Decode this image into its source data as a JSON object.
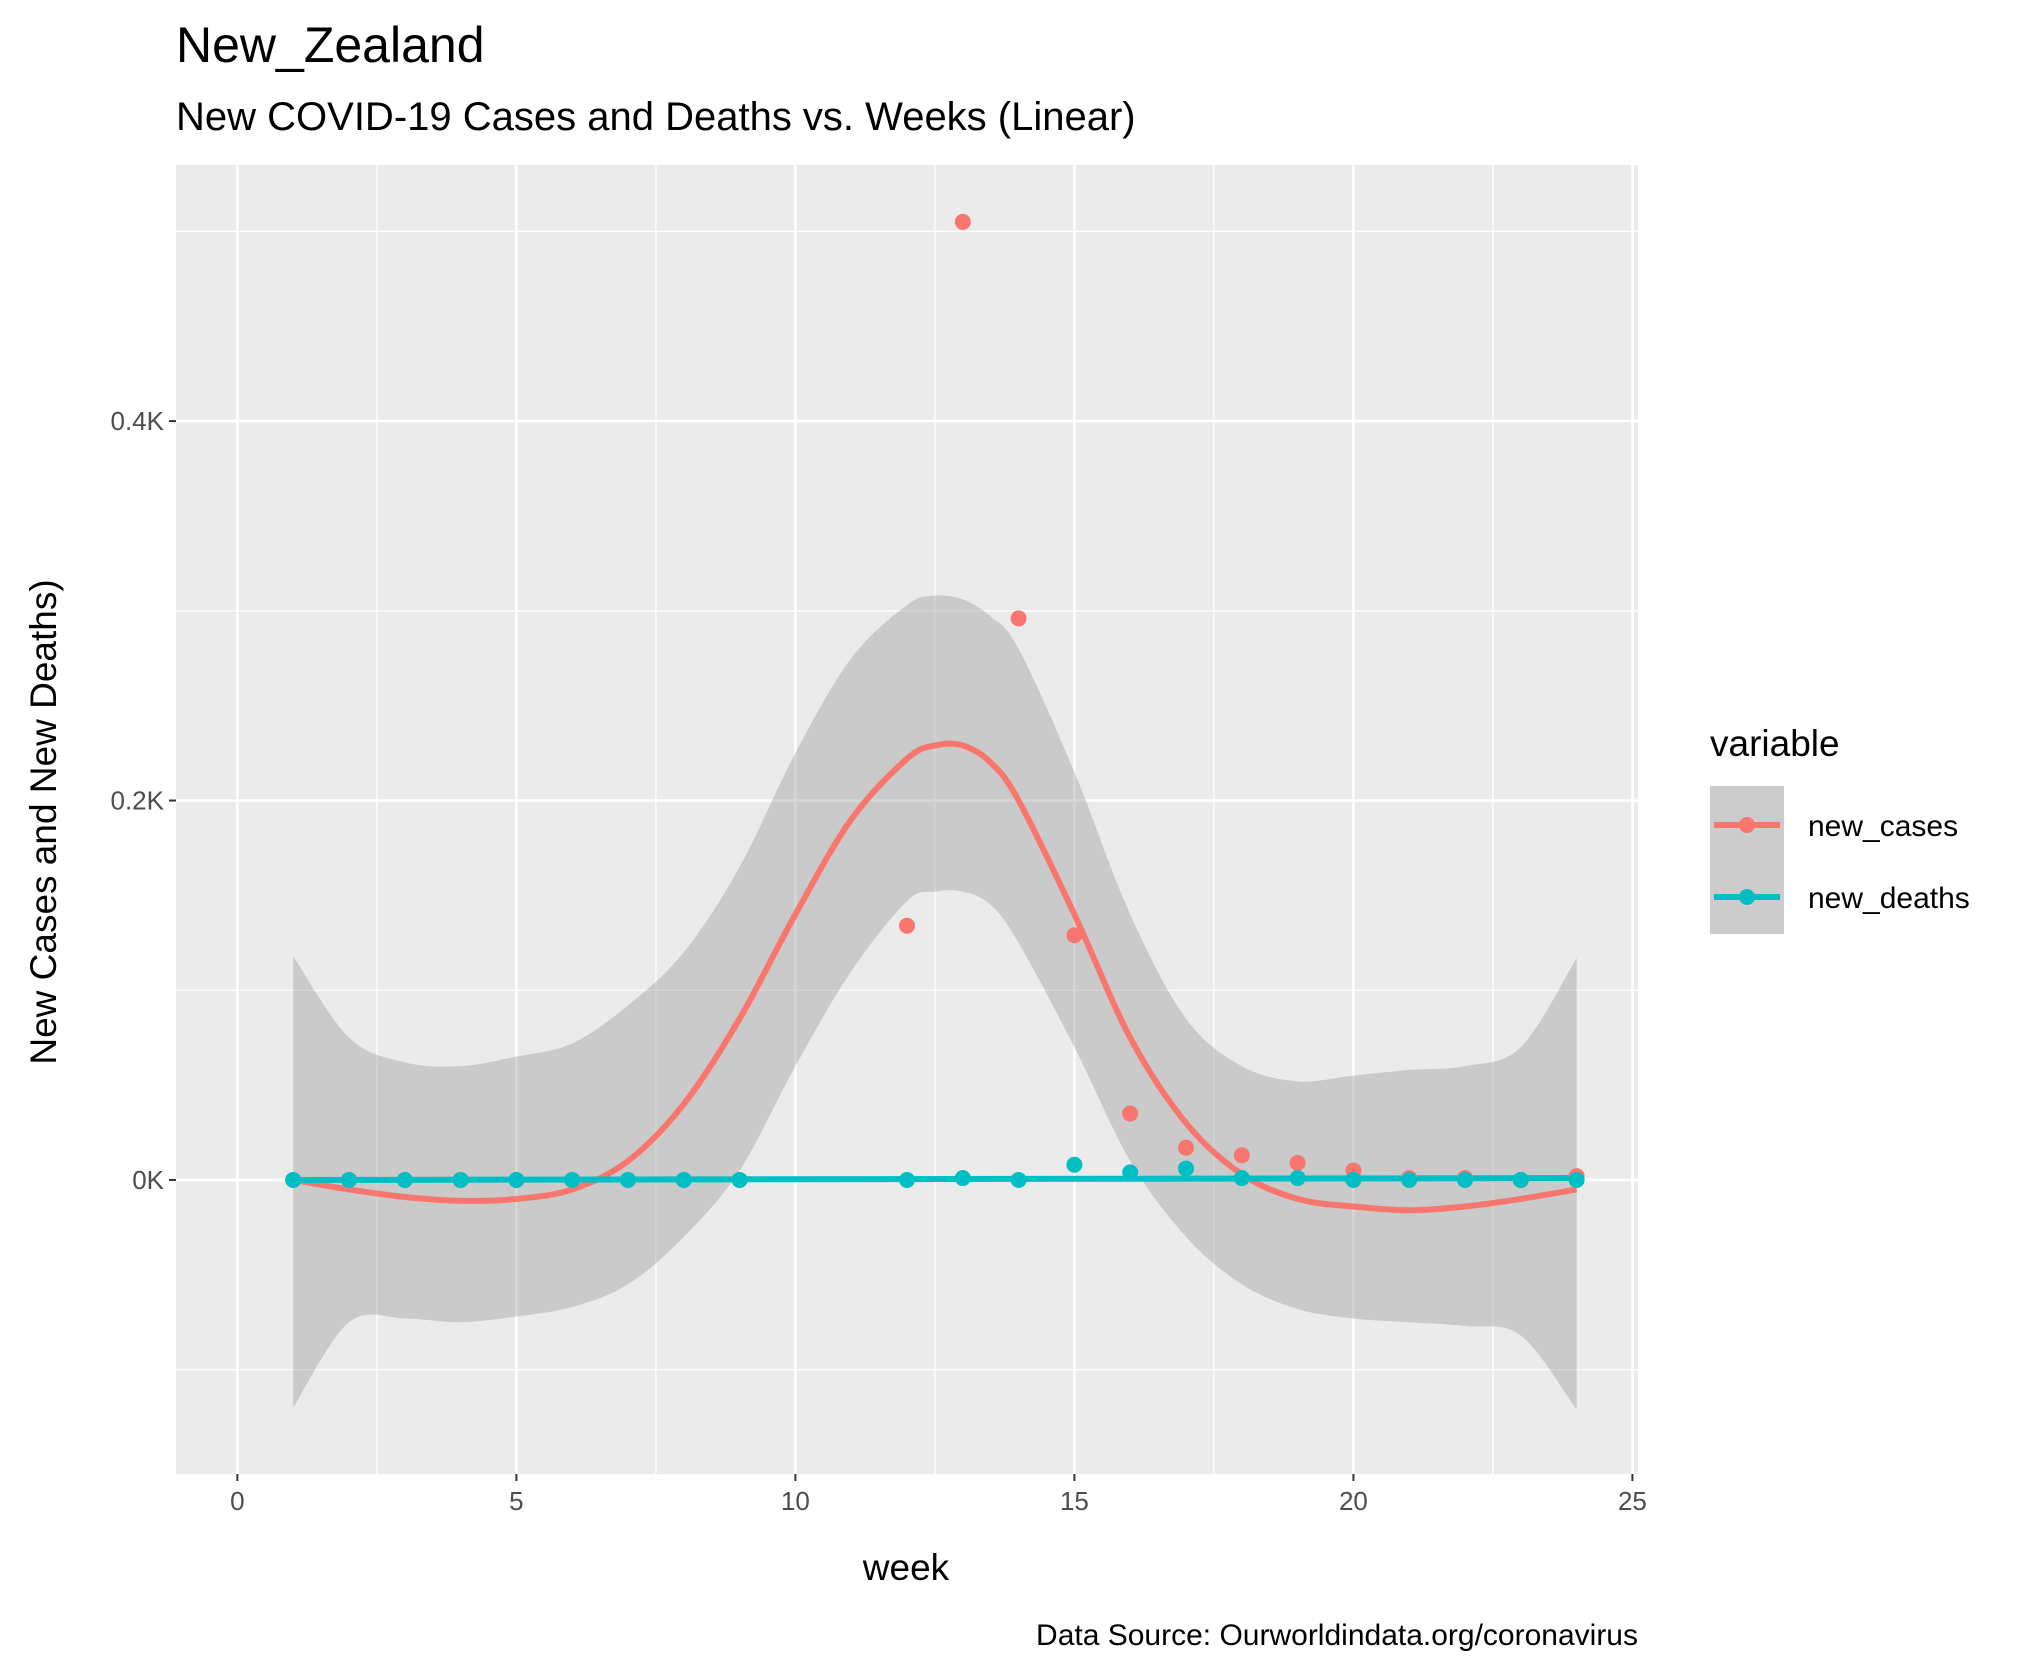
{
  "chart_data": {
    "type": "scatter",
    "title": "New_Zealand",
    "subtitle": "New COVID-19 Cases and Deaths vs. Weeks (Linear)",
    "xlabel": "week",
    "ylabel": "New Cases and New Deaths)",
    "caption": "Data Source: Ourworldindata.org/coronavirus",
    "xlim": [
      -1.1,
      25.1
    ],
    "ylim": [
      -155,
      535
    ],
    "x_ticks": [
      0,
      5,
      10,
      15,
      20,
      25
    ],
    "x_tick_labels": [
      "0",
      "5",
      "10",
      "15",
      "20",
      "25"
    ],
    "y_ticks": [
      0,
      200,
      400
    ],
    "y_tick_labels": [
      "0K",
      "0.2K",
      "0.4K"
    ],
    "grid": true,
    "legend": {
      "title": "variable",
      "placement": "right",
      "entries": [
        "new_cases",
        "new_deaths"
      ]
    },
    "series": [
      {
        "name": "new_cases",
        "color": "#F8766D",
        "points": {
          "x": [
            1,
            2,
            3,
            4,
            5,
            6,
            7,
            8,
            9,
            12,
            13,
            14,
            15,
            16,
            17,
            18,
            19,
            20,
            21,
            22,
            23,
            24
          ],
          "y": [
            0,
            0,
            0,
            0,
            0,
            0,
            0,
            0,
            0,
            134,
            505,
            296,
            129,
            35,
            17,
            13,
            9,
            5,
            1,
            1,
            0,
            2
          ]
        },
        "smooth": {
          "x": [
            1,
            2,
            3,
            4,
            5,
            6,
            7,
            8,
            9,
            10,
            11,
            12,
            12.5,
            13,
            13.5,
            14,
            15,
            16,
            17,
            18,
            19,
            20,
            21,
            22,
            23,
            24
          ],
          "y": [
            0,
            -5,
            -9,
            -11,
            -10,
            -5,
            10,
            40,
            85,
            140,
            190,
            222,
            229,
            229,
            220,
            200,
            140,
            75,
            30,
            3,
            -10,
            -14,
            -16,
            -14,
            -10,
            -5
          ],
          "lower": [
            -120,
            -75,
            -73,
            -75,
            -72,
            -67,
            -55,
            -30,
            5,
            60,
            110,
            147,
            152,
            152,
            145,
            125,
            70,
            10,
            -30,
            -55,
            -68,
            -73,
            -75,
            -77,
            -82,
            -121
          ],
          "upper": [
            118,
            75,
            62,
            60,
            65,
            72,
            92,
            120,
            165,
            225,
            275,
            303,
            308,
            306,
            297,
            280,
            215,
            140,
            85,
            60,
            52,
            55,
            58,
            60,
            70,
            117
          ]
        }
      },
      {
        "name": "new_deaths",
        "color": "#00BFC4",
        "points": {
          "x": [
            1,
            2,
            3,
            4,
            5,
            6,
            7,
            8,
            9,
            12,
            13,
            14,
            15,
            16,
            17,
            18,
            19,
            20,
            21,
            22,
            23,
            24
          ],
          "y": [
            0,
            0,
            0,
            0,
            0,
            0,
            0,
            0,
            0,
            0,
            1,
            0,
            8,
            4,
            6,
            1,
            1,
            0,
            0,
            0,
            0,
            0
          ]
        },
        "smooth": {
          "x": [
            1,
            24
          ],
          "y": [
            0,
            1
          ]
        }
      }
    ]
  }
}
